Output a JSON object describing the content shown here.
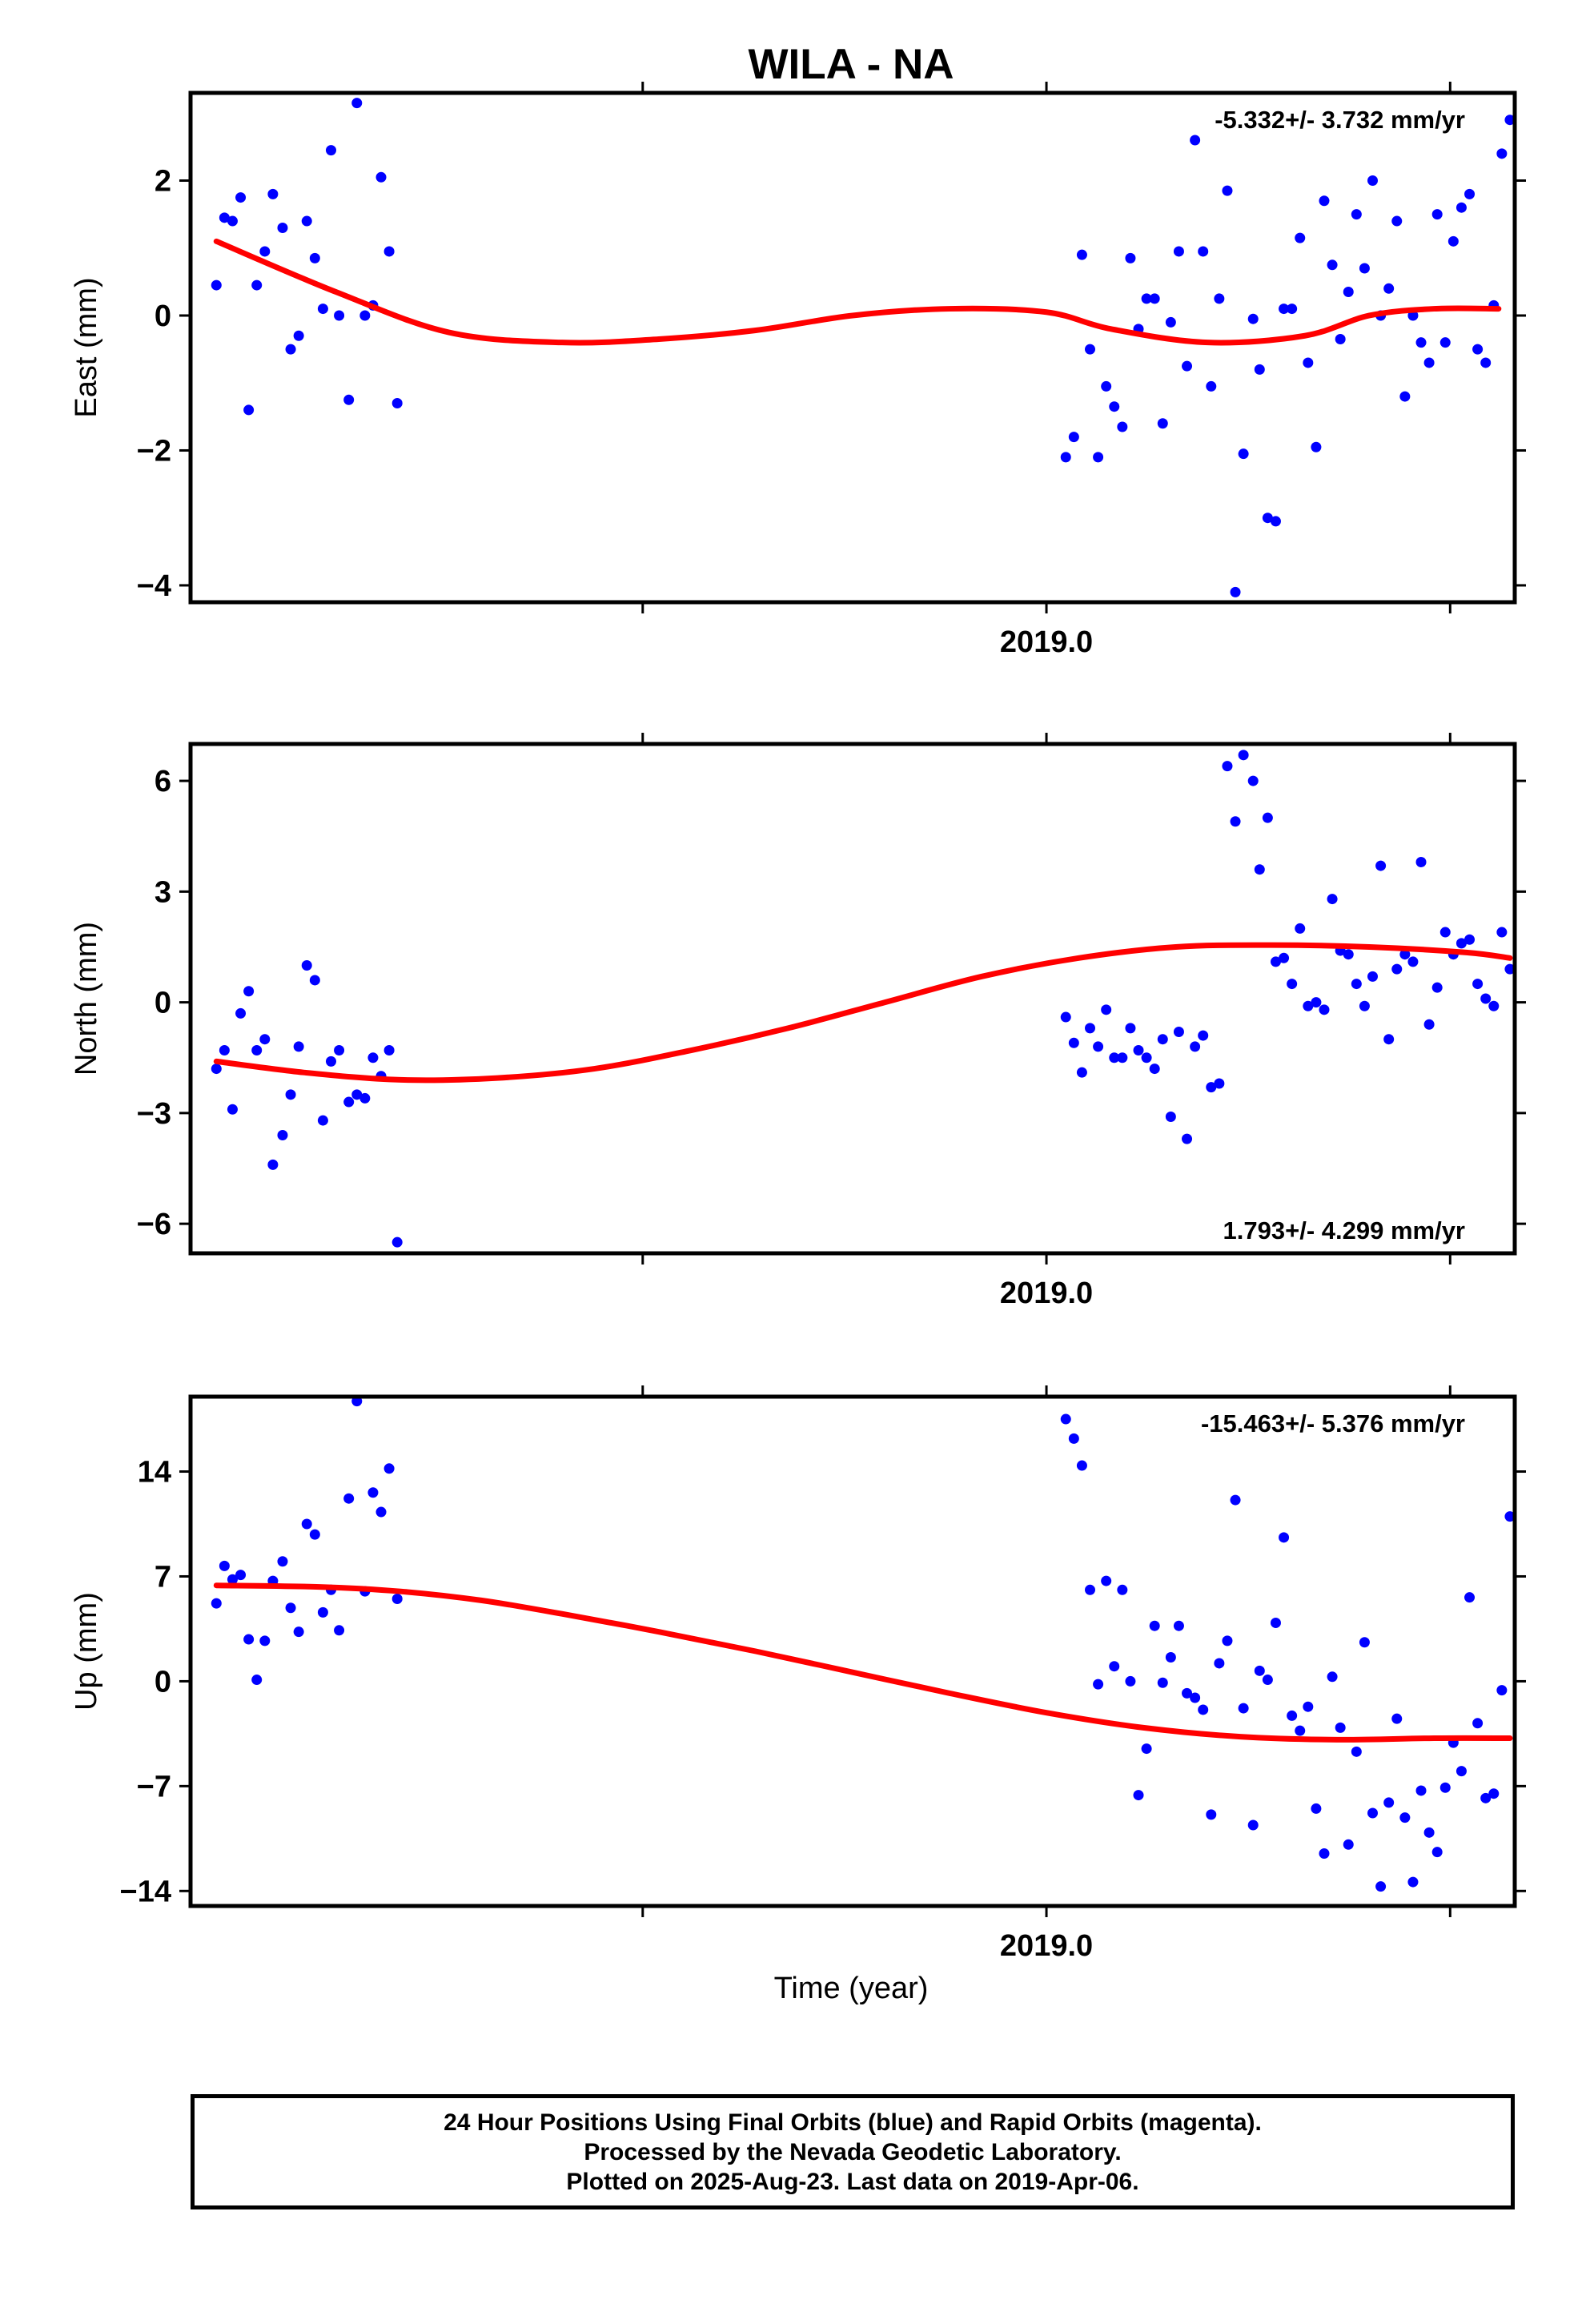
{
  "title": "WILA - NA",
  "xlabel": "Time (year)",
  "footer": {
    "line1": "24 Hour Positions Using Final Orbits (blue) and Rapid Orbits (magenta).",
    "line2": "Processed by the Nevada Geodetic Laboratory.",
    "line3": "Plotted on 2025-Aug-23. Last data on 2019-Apr-06."
  },
  "colors": {
    "data": "#0000ff",
    "fit": "#ff0000",
    "axis": "#000000"
  },
  "chart_data": [
    {
      "type": "scatter",
      "name": "east",
      "ylabel": "East (mm)",
      "rate": "-5.332+/- 3.732 mm/yr",
      "rate_position": "top-right",
      "xlim": [
        2018.47,
        2019.29
      ],
      "ylim": [
        -4.25,
        3.3
      ],
      "yticks": [
        -4,
        -2,
        0,
        2
      ],
      "xtick_label": "2019.0",
      "x": [
        2018.486,
        2018.491,
        2018.496,
        2018.501,
        2018.506,
        2018.511,
        2018.516,
        2018.521,
        2018.527,
        2018.532,
        2018.537,
        2018.542,
        2018.547,
        2018.552,
        2018.557,
        2018.562,
        2018.568,
        2018.573,
        2018.578,
        2018.583,
        2018.588,
        2018.593,
        2018.598,
        2019.012,
        2019.017,
        2019.022,
        2019.027,
        2019.032,
        2019.037,
        2019.042,
        2019.047,
        2019.052,
        2019.057,
        2019.062,
        2019.067,
        2019.072,
        2019.077,
        2019.082,
        2019.087,
        2019.092,
        2019.097,
        2019.102,
        2019.107,
        2019.112,
        2019.117,
        2019.122,
        2019.128,
        2019.132,
        2019.137,
        2019.142,
        2019.147,
        2019.152,
        2019.157,
        2019.162,
        2019.167,
        2019.172,
        2019.177,
        2019.182,
        2019.187,
        2019.192,
        2019.197,
        2019.202,
        2019.207,
        2019.212,
        2019.217,
        2019.222,
        2019.227,
        2019.232,
        2019.237,
        2019.242,
        2019.247,
        2019.252,
        2019.257,
        2019.262,
        2019.267,
        2019.272,
        2019.277,
        2019.282,
        2019.287
      ],
      "y": [
        0.45,
        1.45,
        1.4,
        1.75,
        -1.4,
        0.45,
        0.95,
        1.8,
        1.3,
        -0.5,
        -0.3,
        1.4,
        0.85,
        0.1,
        2.45,
        0,
        -1.25,
        3.15,
        0,
        0.15,
        2.05,
        0.95,
        -1.3,
        -2.1,
        -1.8,
        0.9,
        -0.5,
        -2.1,
        -1.05,
        -1.35,
        -1.65,
        0.85,
        -0.2,
        0.25,
        0.25,
        -1.6,
        -0.1,
        0.95,
        -0.75,
        2.6,
        0.95,
        -1.05,
        0.25,
        1.85,
        -4.1,
        -2.05,
        -0.05,
        -0.8,
        -3,
        -3.05,
        0.1,
        0.1,
        1.15,
        -0.7,
        -1.95,
        1.7,
        0.75,
        -0.35,
        0.35,
        1.5,
        0.7,
        2,
        0,
        0.4,
        1.4,
        -1.2,
        0,
        -0.4,
        -0.7,
        1.5,
        -0.4,
        1.1,
        1.6,
        1.8,
        -0.5,
        -0.7,
        0.15,
        2.4,
        2.9
      ],
      "fit": {
        "x": [
          2018.486,
          2018.56,
          2018.63,
          2018.7,
          2018.76,
          2018.82,
          2018.88,
          2018.94,
          2019.0,
          2019.04,
          2019.1,
          2019.16,
          2019.2,
          2019.24,
          2019.28
        ],
        "y": [
          1.1,
          0.35,
          -0.25,
          -0.4,
          -0.35,
          -0.22,
          0,
          0.1,
          0.05,
          -0.2,
          -0.4,
          -0.3,
          0,
          0.1,
          0.1
        ]
      }
    },
    {
      "type": "scatter",
      "name": "north",
      "ylabel": "North (mm)",
      "rate": "1.793+/- 4.299 mm/yr",
      "rate_position": "bottom-right",
      "xlim": [
        2018.47,
        2019.29
      ],
      "ylim": [
        -6.8,
        7.0
      ],
      "yticks": [
        -6,
        -3,
        0,
        3,
        6
      ],
      "xtick_label": "2019.0",
      "x": [
        2018.486,
        2018.491,
        2018.496,
        2018.501,
        2018.506,
        2018.511,
        2018.516,
        2018.521,
        2018.527,
        2018.532,
        2018.537,
        2018.542,
        2018.547,
        2018.552,
        2018.557,
        2018.562,
        2018.568,
        2018.573,
        2018.578,
        2018.583,
        2018.588,
        2018.593,
        2018.598,
        2019.012,
        2019.017,
        2019.022,
        2019.027,
        2019.032,
        2019.037,
        2019.042,
        2019.047,
        2019.052,
        2019.057,
        2019.062,
        2019.067,
        2019.072,
        2019.077,
        2019.082,
        2019.087,
        2019.092,
        2019.097,
        2019.102,
        2019.107,
        2019.112,
        2019.117,
        2019.122,
        2019.128,
        2019.132,
        2019.137,
        2019.142,
        2019.147,
        2019.152,
        2019.157,
        2019.162,
        2019.167,
        2019.172,
        2019.177,
        2019.182,
        2019.187,
        2019.192,
        2019.197,
        2019.202,
        2019.207,
        2019.212,
        2019.217,
        2019.222,
        2019.227,
        2019.232,
        2019.237,
        2019.242,
        2019.247,
        2019.252,
        2019.257,
        2019.262,
        2019.267,
        2019.272,
        2019.277,
        2019.282,
        2019.287
      ],
      "y": [
        -1.8,
        -1.3,
        -2.9,
        -0.3,
        0.3,
        -1.3,
        -1,
        -4.4,
        -3.6,
        -2.5,
        -1.2,
        1,
        0.6,
        -3.2,
        -1.6,
        -1.3,
        -2.7,
        -2.5,
        -2.6,
        -1.5,
        -2,
        -1.3,
        -6.5,
        -0.4,
        -1.1,
        -1.9,
        -0.7,
        -1.2,
        -0.2,
        -1.5,
        -1.5,
        -0.7,
        -1.3,
        -1.5,
        -1.8,
        -1,
        -3.1,
        -0.8,
        -3.7,
        -1.2,
        -0.9,
        -2.3,
        -2.2,
        6.4,
        4.9,
        6.7,
        6,
        3.6,
        5,
        1.1,
        1.2,
        0.5,
        2,
        -0.1,
        0,
        -0.2,
        2.8,
        1.4,
        1.3,
        0.5,
        -0.1,
        0.7,
        3.7,
        -1,
        0.9,
        1.3,
        1.1,
        3.8,
        -0.6,
        0.4,
        1.9,
        1.3,
        1.6,
        1.7,
        0.5,
        0.1,
        -0.1,
        1.9,
        0.9
      ],
      "fit": {
        "x": [
          2018.486,
          2018.54,
          2018.6,
          2018.66,
          2018.72,
          2018.78,
          2018.84,
          2018.9,
          2018.96,
          2019.02,
          2019.08,
          2019.14,
          2019.2,
          2019.26,
          2019.287
        ],
        "y": [
          -1.6,
          -1.9,
          -2.1,
          -2.05,
          -1.8,
          -1.3,
          -0.7,
          0,
          0.7,
          1.2,
          1.5,
          1.55,
          1.5,
          1.35,
          1.2
        ]
      }
    },
    {
      "type": "scatter",
      "name": "up",
      "ylabel": "Up (mm)",
      "rate": "-15.463+/- 5.376 mm/yr",
      "rate_position": "top-right",
      "xlim": [
        2018.47,
        2019.29
      ],
      "ylim": [
        -15,
        19
      ],
      "yticks": [
        -14,
        -7,
        0,
        7,
        14
      ],
      "xtick_label": "2019.0",
      "x": [
        2018.486,
        2018.491,
        2018.496,
        2018.501,
        2018.506,
        2018.511,
        2018.516,
        2018.521,
        2018.527,
        2018.532,
        2018.537,
        2018.542,
        2018.547,
        2018.552,
        2018.557,
        2018.562,
        2018.568,
        2018.573,
        2018.578,
        2018.583,
        2018.588,
        2018.593,
        2018.598,
        2019.012,
        2019.017,
        2019.022,
        2019.027,
        2019.032,
        2019.037,
        2019.042,
        2019.047,
        2019.052,
        2019.057,
        2019.062,
        2019.067,
        2019.072,
        2019.077,
        2019.082,
        2019.087,
        2019.092,
        2019.097,
        2019.102,
        2019.107,
        2019.112,
        2019.117,
        2019.122,
        2019.128,
        2019.132,
        2019.137,
        2019.142,
        2019.147,
        2019.152,
        2019.157,
        2019.162,
        2019.167,
        2019.172,
        2019.177,
        2019.182,
        2019.187,
        2019.192,
        2019.197,
        2019.202,
        2019.207,
        2019.212,
        2019.217,
        2019.222,
        2019.227,
        2019.232,
        2019.237,
        2019.242,
        2019.247,
        2019.252,
        2019.257,
        2019.262,
        2019.267,
        2019.272,
        2019.277,
        2019.282,
        2019.287
      ],
      "y": [
        5.2,
        7.7,
        6.8,
        7.1,
        2.8,
        0.1,
        2.7,
        6.7,
        8,
        4.9,
        3.3,
        10.5,
        9.8,
        4.6,
        6.1,
        3.4,
        12.2,
        18.7,
        6,
        12.6,
        11.3,
        14.2,
        5.5,
        17.5,
        16.2,
        14.4,
        6.1,
        -0.2,
        6.7,
        1,
        6.1,
        0,
        -7.6,
        -4.5,
        3.7,
        -0.1,
        1.6,
        3.7,
        -0.8,
        -1.1,
        -1.9,
        -8.9,
        1.2,
        2.7,
        12.1,
        -1.8,
        -9.6,
        0.7,
        0.1,
        3.9,
        9.6,
        -2.3,
        -3.3,
        -1.7,
        -8.5,
        -11.5,
        0.3,
        -3.1,
        -10.9,
        -4.7,
        2.6,
        -8.8,
        -13.7,
        -8.1,
        -2.5,
        -9.1,
        -13.4,
        -7.3,
        -10.1,
        -11.4,
        -7.1,
        -4.1,
        -6,
        5.6,
        -2.8,
        -7.8,
        -7.5,
        -0.6,
        11
      ],
      "fit": {
        "x": [
          2018.486,
          2018.55,
          2018.6,
          2018.65,
          2018.7,
          2018.76,
          2018.82,
          2018.88,
          2018.94,
          2019.0,
          2019.06,
          2019.12,
          2019.18,
          2019.24,
          2019.287
        ],
        "y": [
          6.4,
          6.3,
          6,
          5.4,
          4.5,
          3.3,
          2,
          0.6,
          -0.8,
          -2.1,
          -3.1,
          -3.7,
          -3.9,
          -3.8,
          -3.8
        ]
      }
    }
  ]
}
